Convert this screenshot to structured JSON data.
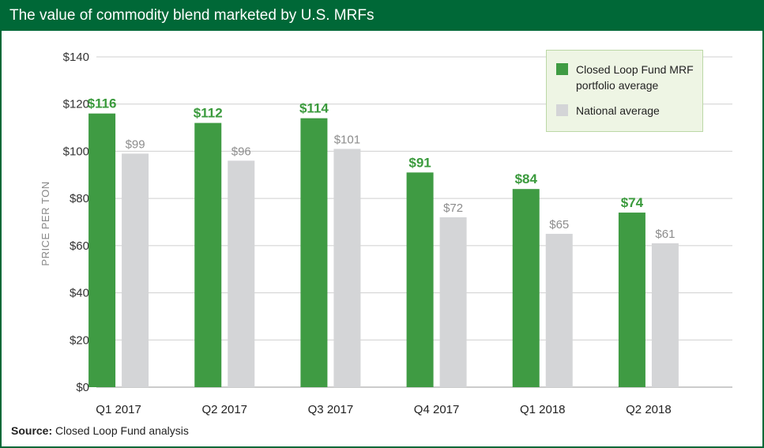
{
  "title": "The value of commodity blend marketed by U.S. MRFs",
  "source": {
    "label": "Source:",
    "text": "Closed Loop Fund analysis"
  },
  "colors": {
    "brand": "#006837",
    "series_green": "#3f9b43",
    "series_gray": "#d4d5d7"
  },
  "chart_data": {
    "type": "bar",
    "title": "The value of commodity blend marketed by U.S. MRFs",
    "xlabel": "",
    "ylabel": "PRICE PER TON",
    "ylim": [
      0,
      140
    ],
    "yticks": [
      0,
      20,
      40,
      60,
      80,
      100,
      120,
      140
    ],
    "ytick_labels": [
      "$0",
      "$20",
      "$40",
      "$60",
      "$80",
      "$100",
      "$120",
      "$140"
    ],
    "categories": [
      "Q1 2017",
      "Q2 2017",
      "Q3 2017",
      "Q4 2017",
      "Q1 2018",
      "Q2 2018"
    ],
    "series": [
      {
        "name": "Closed Loop Fund MRF portfolio average",
        "values": [
          116,
          112,
          114,
          91,
          84,
          74
        ],
        "labels": [
          "$116",
          "$112",
          "$114",
          "$91",
          "$84",
          "$74"
        ],
        "color": "#3f9b43"
      },
      {
        "name": "National average",
        "values": [
          99,
          96,
          101,
          72,
          65,
          61
        ],
        "labels": [
          "$99",
          "$96",
          "$101",
          "$72",
          "$65",
          "$61"
        ],
        "color": "#d4d5d7"
      }
    ],
    "grid": true,
    "legend_position": "top-right"
  }
}
